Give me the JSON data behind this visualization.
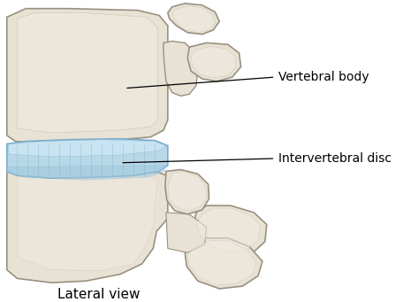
{
  "background_color": "#ffffff",
  "bone_fill": "#e8e2d5",
  "bone_light": "#f0ece2",
  "bone_mid": "#d8d0be",
  "bone_dark": "#b8b0a0",
  "bone_edge": "#9a9080",
  "disc_fill": "#b8d8e8",
  "disc_light": "#d0e8f5",
  "disc_edge": "#7aaccb",
  "label1": "Vertebral body",
  "label2": "Intervertebral disc",
  "caption": "Lateral view",
  "label_fontsize": 10,
  "caption_fontsize": 11
}
